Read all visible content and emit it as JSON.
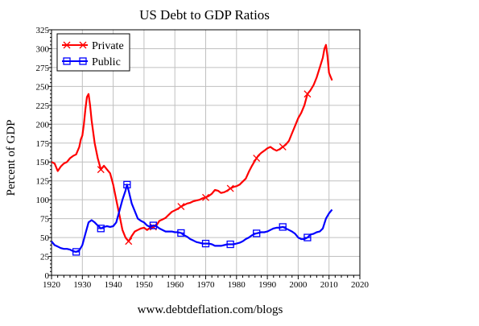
{
  "chart_data": {
    "type": "line",
    "title": "US Debt to GDP Ratios",
    "ylabel": "Percent of GDP",
    "xlabel": "",
    "footer": "www.debtdeflation.com/blogs",
    "xlim": [
      1920,
      2020
    ],
    "ylim": [
      0,
      325
    ],
    "xticks": [
      1920,
      1930,
      1940,
      1950,
      1960,
      1970,
      1980,
      1990,
      2000,
      2010,
      2020
    ],
    "yticks": [
      0,
      25,
      50,
      75,
      100,
      125,
      150,
      175,
      200,
      225,
      250,
      275,
      300,
      325
    ],
    "grid": true,
    "legend_position": "top-left",
    "series": [
      {
        "name": "Private",
        "color": "#ff0000",
        "marker": "x",
        "marker_x": [
          1936,
          1945,
          1953,
          1962,
          1970,
          1978,
          1986.5,
          1995,
          2003
        ],
        "x": [
          1920,
          1921,
          1922,
          1923,
          1924,
          1925,
          1926,
          1927,
          1928,
          1929,
          1929.5,
          1930,
          1930.5,
          1931,
          1931.5,
          1932,
          1932.5,
          1933,
          1933.5,
          1934,
          1935,
          1936,
          1937,
          1938,
          1939,
          1940,
          1941,
          1942,
          1943,
          1944,
          1945,
          1946,
          1947,
          1948,
          1949,
          1950,
          1951,
          1952,
          1953,
          1954,
          1955,
          1956,
          1957,
          1958,
          1959,
          1960,
          1961,
          1962,
          1963,
          1964,
          1965,
          1966,
          1967,
          1968,
          1969,
          1970,
          1971,
          1972,
          1973,
          1974,
          1975,
          1976,
          1977,
          1978,
          1979,
          1980,
          1981,
          1982,
          1983,
          1984,
          1985,
          1986,
          1987,
          1988,
          1989,
          1990,
          1991,
          1992,
          1993,
          1994,
          1995,
          1996,
          1997,
          1998,
          1999,
          2000,
          2001,
          2002,
          2003,
          2004,
          2005,
          2006,
          2007,
          2008,
          2008.5,
          2009,
          2009.5,
          2010,
          2011
        ],
        "y": [
          150,
          148,
          138,
          144,
          148,
          150,
          155,
          158,
          160,
          170,
          180,
          185,
          200,
          220,
          236,
          240,
          225,
          205,
          190,
          175,
          155,
          140,
          145,
          140,
          135,
          120,
          100,
          80,
          60,
          50,
          45,
          52,
          58,
          60,
          62,
          63,
          60,
          63,
          64,
          66,
          72,
          74,
          76,
          80,
          84,
          86,
          88,
          91,
          93,
          95,
          96,
          98,
          99,
          100,
          102,
          103,
          105,
          108,
          113,
          112,
          109,
          110,
          112,
          115,
          117,
          118,
          120,
          124,
          128,
          137,
          145,
          152,
          158,
          162,
          165,
          168,
          170,
          167,
          165,
          167,
          170,
          173,
          178,
          188,
          198,
          208,
          215,
          225,
          240,
          245,
          252,
          262,
          275,
          288,
          300,
          305,
          290,
          268,
          258
        ]
      },
      {
        "name": "Public",
        "color": "#0000ff",
        "marker": "square",
        "marker_x": [
          1928,
          1936,
          1944.5,
          1953,
          1962,
          1970,
          1978,
          1986.5,
          1995,
          2003
        ],
        "x": [
          1920,
          1921,
          1922,
          1923,
          1924,
          1925,
          1926,
          1927,
          1928,
          1929,
          1930,
          1931,
          1932,
          1933,
          1934,
          1935,
          1936,
          1937,
          1938,
          1939,
          1940,
          1941,
          1942,
          1943,
          1944,
          1944.5,
          1945,
          1946,
          1947,
          1948,
          1949,
          1950,
          1951,
          1952,
          1953,
          1954,
          1955,
          1956,
          1957,
          1958,
          1959,
          1960,
          1961,
          1962,
          1963,
          1964,
          1965,
          1966,
          1967,
          1968,
          1969,
          1970,
          1971,
          1972,
          1973,
          1974,
          1975,
          1976,
          1977,
          1978,
          1979,
          1980,
          1981,
          1982,
          1983,
          1984,
          1985,
          1986,
          1987,
          1988,
          1989,
          1990,
          1991,
          1992,
          1993,
          1994,
          1995,
          1996,
          1997,
          1998,
          1999,
          2000,
          2001,
          2002,
          2003,
          2004,
          2005,
          2006,
          2007,
          2008,
          2009,
          2010,
          2011
        ],
        "y": [
          45,
          40,
          38,
          36,
          35,
          35,
          34,
          32,
          31,
          33,
          40,
          55,
          70,
          73,
          70,
          66,
          62,
          64,
          65,
          64,
          65,
          70,
          85,
          100,
          112,
          120,
          112,
          95,
          85,
          75,
          72,
          70,
          66,
          64,
          66,
          65,
          62,
          60,
          58,
          58,
          58,
          57,
          57,
          56,
          53,
          51,
          48,
          46,
          44,
          43,
          42,
          42,
          42,
          41,
          39,
          39,
          39,
          40,
          41,
          41,
          41,
          42,
          43,
          45,
          48,
          50,
          53,
          55,
          56,
          57,
          57,
          58,
          60,
          62,
          63,
          63,
          64,
          62,
          60,
          58,
          55,
          50,
          48,
          48,
          50,
          54,
          55,
          57,
          58,
          62,
          75,
          82,
          87
        ]
      }
    ]
  }
}
